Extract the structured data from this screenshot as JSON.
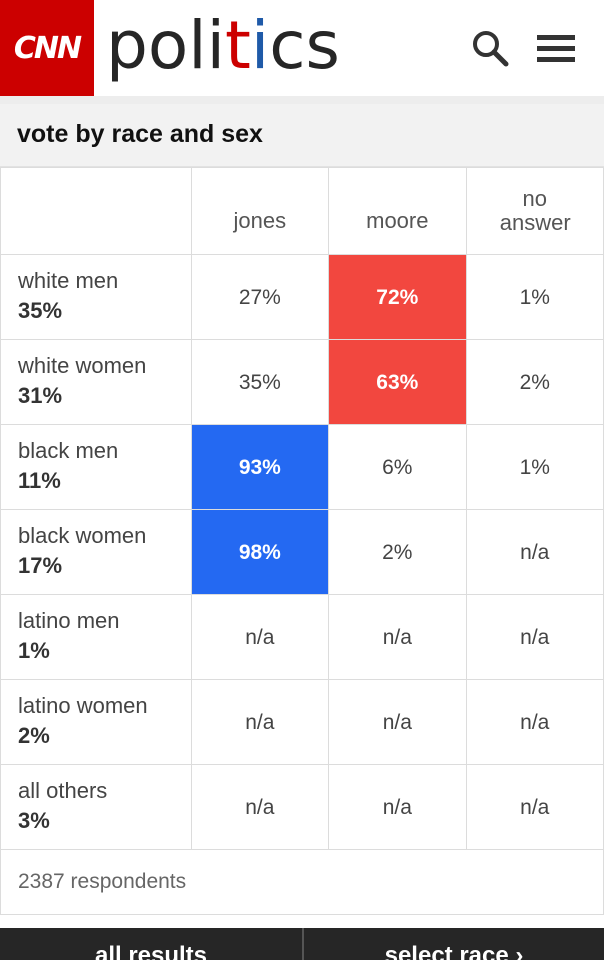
{
  "header": {
    "logo": "CNN",
    "brand_prefix": "poli",
    "brand_t": "t",
    "brand_i": "i",
    "brand_suffix": "cs"
  },
  "section": {
    "title": "vote by race and sex"
  },
  "table": {
    "columns": [
      "jones",
      "moore",
      "no answer"
    ],
    "colors": {
      "moore_win": "#f2473f",
      "jones_win": "#2469f2"
    },
    "rows": [
      {
        "name": "white men",
        "share": "35%",
        "jones": "27%",
        "moore": "72%",
        "no_answer": "1%"
      },
      {
        "name": "white women",
        "share": "31%",
        "jones": "35%",
        "moore": "63%",
        "no_answer": "2%"
      },
      {
        "name": "black men",
        "share": "11%",
        "jones": "93%",
        "moore": "6%",
        "no_answer": "1%"
      },
      {
        "name": "black women",
        "share": "17%",
        "jones": "98%",
        "moore": "2%",
        "no_answer": "n/a"
      },
      {
        "name": "latino men",
        "share": "1%",
        "jones": "n/a",
        "moore": "n/a",
        "no_answer": "n/a"
      },
      {
        "name": "latino women",
        "share": "2%",
        "jones": "n/a",
        "moore": "n/a",
        "no_answer": "n/a"
      },
      {
        "name": "all others",
        "share": "3%",
        "jones": "n/a",
        "moore": "n/a",
        "no_answer": "n/a"
      }
    ],
    "respondents": "2387 respondents"
  },
  "bottom_bar": {
    "left_label": "all results",
    "right_label": "select race ›"
  },
  "icons": {
    "search": "search-icon",
    "menu": "hamburger-menu-icon"
  }
}
